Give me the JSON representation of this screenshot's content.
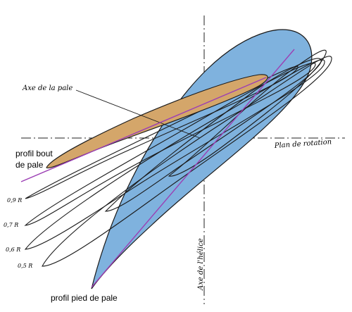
{
  "labels": {
    "axe_pale": "Axe de la pale",
    "plan_rotation": "Plan de rotation",
    "axe_helice": "Axe de l'hélice",
    "profil_bout": [
      "profil bout",
      "de pale"
    ],
    "profil_pied": "profil pied de pale",
    "sections": [
      "0,9 R",
      "0,7 R",
      "0,6 R",
      "0,5 R"
    ]
  },
  "colors": {
    "root_profile_fill": "#7fb2de",
    "tip_profile_fill": "#d4a66a",
    "blade_axis_line": "#9c3fb4",
    "outline": "#1a1a1a"
  }
}
